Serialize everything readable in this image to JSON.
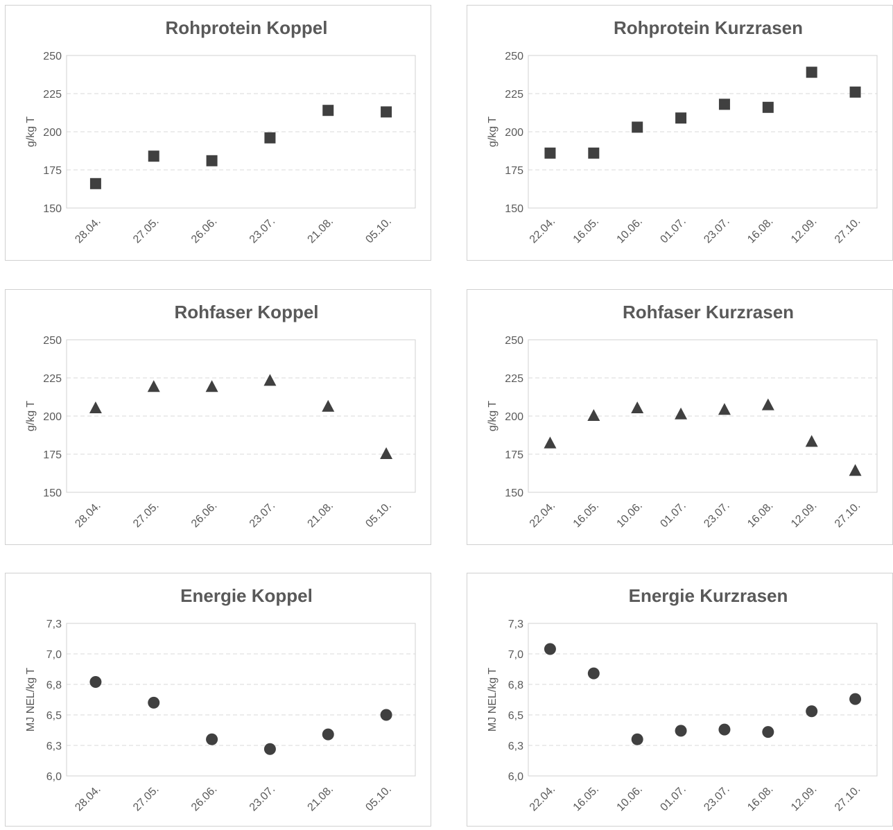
{
  "style": {
    "marker_color": "#404040",
    "grid_color": "#d9d9d9",
    "text_color": "#595959",
    "frame_color": "#d0d0d0"
  },
  "chart_data": [
    {
      "type": "scatter",
      "title": "Rohprotein Koppel",
      "ylabel": "g/kg T",
      "marker": "square",
      "categories": [
        "28.04.",
        "27.05.",
        "26.06.",
        "23.07.",
        "21.08.",
        "05.10."
      ],
      "values": [
        166,
        184,
        181,
        196,
        214,
        213
      ],
      "ylim": [
        150,
        250
      ],
      "yticks": [
        "150",
        "175",
        "200",
        "225",
        "250"
      ],
      "grid": true
    },
    {
      "type": "scatter",
      "title": "Rohprotein Kurzrasen",
      "ylabel": "g/kg T",
      "marker": "square",
      "categories": [
        "22.04.",
        "16.05.",
        "10.06.",
        "01.07.",
        "23.07.",
        "16.08.",
        "12.09.",
        "27.10."
      ],
      "values": [
        186,
        186,
        203,
        209,
        218,
        216,
        239,
        226
      ],
      "ylim": [
        150,
        250
      ],
      "yticks": [
        "150",
        "175",
        "200",
        "225",
        "250"
      ],
      "grid": true
    },
    {
      "type": "scatter",
      "title": "Rohfaser Koppel",
      "ylabel": "g/kg T",
      "marker": "triangle",
      "categories": [
        "28.04.",
        "27.05.",
        "26.06.",
        "23.07.",
        "21.08.",
        "05.10."
      ],
      "values": [
        205,
        219,
        219,
        223,
        206,
        175
      ],
      "ylim": [
        150,
        250
      ],
      "yticks": [
        "150",
        "175",
        "200",
        "225",
        "250"
      ],
      "grid": true
    },
    {
      "type": "scatter",
      "title": "Rohfaser Kurzrasen",
      "ylabel": "g/kg T",
      "marker": "triangle",
      "categories": [
        "22.04.",
        "16.05.",
        "10.06.",
        "01.07.",
        "23.07.",
        "16.08.",
        "12.09.",
        "27.10."
      ],
      "values": [
        182,
        200,
        205,
        201,
        204,
        207,
        183,
        164
      ],
      "ylim": [
        150,
        250
      ],
      "yticks": [
        "150",
        "175",
        "200",
        "225",
        "250"
      ],
      "grid": true
    },
    {
      "type": "scatter",
      "title": "Energie Koppel",
      "ylabel": "MJ NEL/kg T",
      "marker": "circle",
      "categories": [
        "28.04.",
        "27.05.",
        "26.06.",
        "23.07.",
        "21.08.",
        "05.10."
      ],
      "values": [
        6.77,
        6.6,
        6.3,
        6.22,
        6.34,
        6.5
      ],
      "ylim": [
        6.0,
        7.25
      ],
      "yticks": [
        "6,0",
        "6,3",
        "6,5",
        "6,8",
        "7,0",
        "7,3"
      ],
      "grid": true
    },
    {
      "type": "scatter",
      "title": "Energie Kurzrasen",
      "ylabel": "MJ NEL/kg T",
      "marker": "circle",
      "categories": [
        "22.04.",
        "16.05.",
        "10.06.",
        "01.07.",
        "23.07.",
        "16.08.",
        "12.09.",
        "27.10."
      ],
      "values": [
        7.04,
        6.84,
        6.3,
        6.37,
        6.38,
        6.36,
        6.53,
        6.63
      ],
      "ylim": [
        6.0,
        7.25
      ],
      "yticks": [
        "6,0",
        "6,3",
        "6,5",
        "6,8",
        "7,0",
        "7,3"
      ],
      "grid": true
    }
  ]
}
